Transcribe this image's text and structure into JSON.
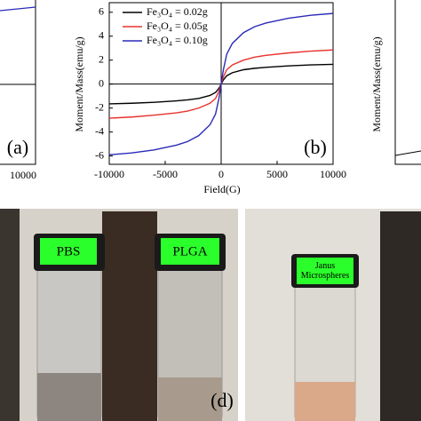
{
  "chart_data": {
    "type": "line",
    "panel_label": "(b)",
    "xlabel": "Field(G)",
    "ylabel": "Moment/Mass(emu/g)",
    "x": [
      -10000,
      -8000,
      -6000,
      -4000,
      -3000,
      -2000,
      -1000,
      -500,
      -200,
      0,
      200,
      500,
      1000,
      2000,
      3000,
      4000,
      6000,
      8000,
      10000
    ],
    "series": [
      {
        "name": "Fe₃O₄ = 0.02g",
        "color": "#000000",
        "values": [
          -1.65,
          -1.6,
          -1.52,
          -1.4,
          -1.32,
          -1.2,
          -0.95,
          -0.7,
          -0.35,
          0,
          0.35,
          0.7,
          0.95,
          1.2,
          1.32,
          1.4,
          1.52,
          1.6,
          1.65
        ]
      },
      {
        "name": "Fe₃O₄ = 0.05g",
        "color": "#e8322d",
        "values": [
          -2.85,
          -2.75,
          -2.6,
          -2.4,
          -2.25,
          -2.0,
          -1.6,
          -1.2,
          -0.6,
          0,
          0.6,
          1.2,
          1.6,
          2.0,
          2.25,
          2.4,
          2.6,
          2.75,
          2.85
        ]
      },
      {
        "name": "Fe₃O₄ = 0.10g",
        "color": "#2a2ab8",
        "values": [
          -5.9,
          -5.75,
          -5.5,
          -5.1,
          -4.8,
          -4.3,
          -3.4,
          -2.5,
          -1.2,
          0,
          1.2,
          2.5,
          3.4,
          4.3,
          4.8,
          5.1,
          5.5,
          5.75,
          5.9
        ]
      }
    ],
    "xlim": [
      -10000,
      10000
    ],
    "xticks": [
      -10000,
      -5000,
      0,
      5000,
      10000
    ],
    "ylim": [
      -6.7,
      6.8
    ],
    "yticks": [
      -6,
      -4,
      -2,
      0,
      2,
      4,
      6
    ],
    "legend": "upper left"
  },
  "panel_a": {
    "panel_label": "(a)",
    "xtick": "10000"
  },
  "panel_c": {
    "ylabel": "Moment/Mass(emu/g)"
  },
  "photos": {
    "labels": [
      "PBS",
      "PLGA",
      "Janus Microspheres"
    ],
    "panel_label": "(d)"
  }
}
